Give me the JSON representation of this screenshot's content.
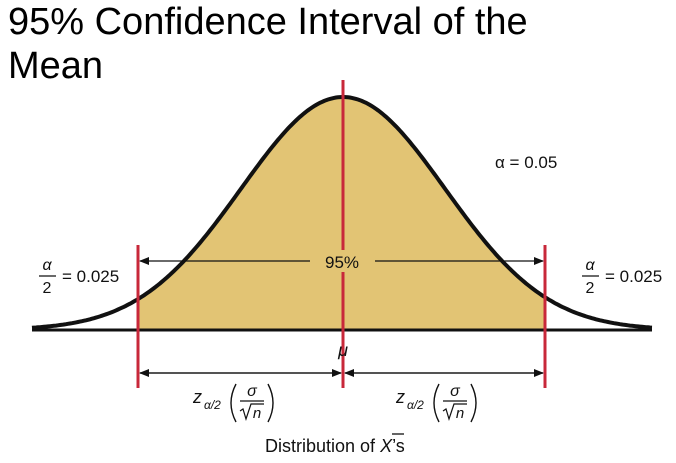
{
  "title": "95% Confidence Interval of the Mean",
  "colors": {
    "fill": "#e2c474",
    "boundary": "#c8283a",
    "curve": "#111111"
  },
  "labels": {
    "alpha": "α = 0.05",
    "center_pct": "95%",
    "tail_left": {
      "num": "α",
      "den": "2",
      "rest": "= 0.025"
    },
    "tail_right": {
      "num": "α",
      "den": "2",
      "rest": "= 0.025"
    },
    "mu": "μ",
    "margin_left": {
      "z": "z",
      "sub": "α/2",
      "num": "σ",
      "den": "n"
    },
    "margin_right": {
      "z": "z",
      "sub": "α/2",
      "num": "σ",
      "den": "n"
    },
    "caption": {
      "prefix": "Distribution of ",
      "xbar": "X",
      "suffix": "’s"
    }
  }
}
